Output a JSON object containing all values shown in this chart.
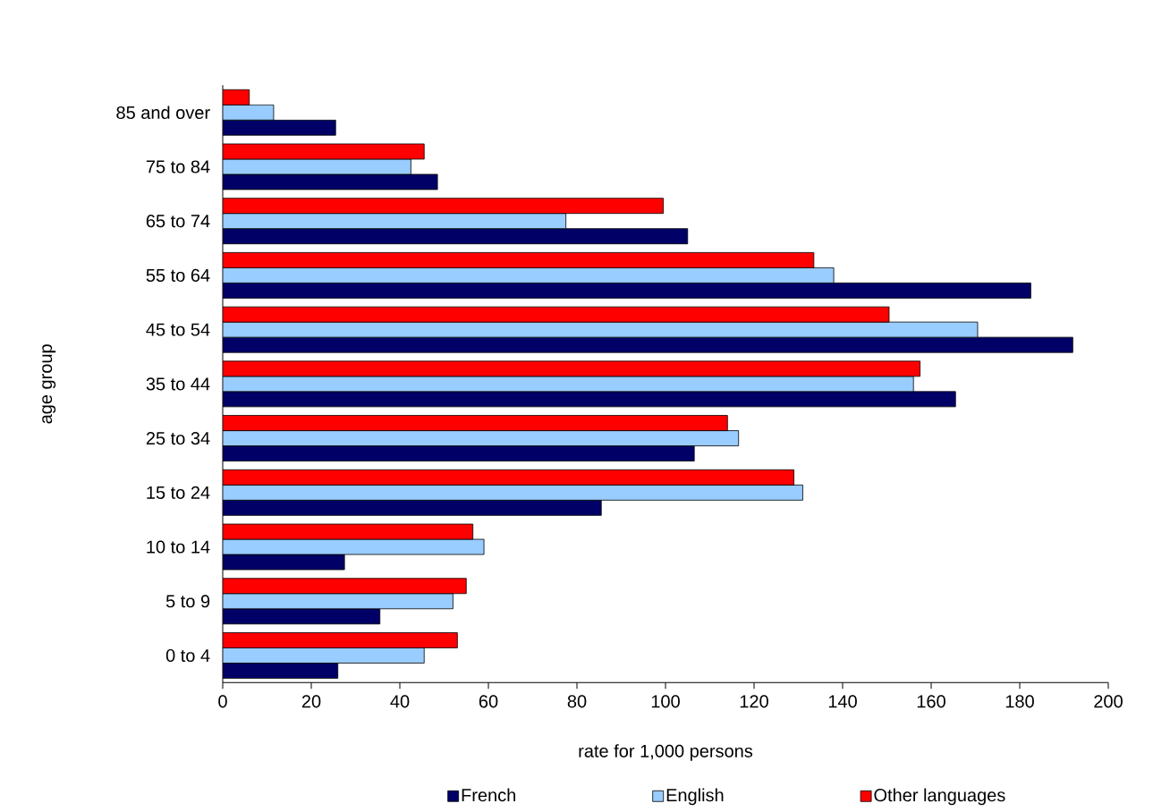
{
  "chart_data": {
    "type": "bar",
    "orientation": "horizontal",
    "xlabel": "rate for 1,000 persons",
    "ylabel": "age group",
    "categories": [
      "85 and over",
      "75 to 84",
      "65 to 74",
      "55 to 64",
      "45 to 54",
      "35 to 44",
      "25 to 34",
      "15 to 24",
      "10 to 14",
      "5 to 9",
      "0 to 4"
    ],
    "series": [
      {
        "name": "French",
        "color": "#000066",
        "values": [
          25.5,
          48.5,
          105,
          182.5,
          192,
          165.5,
          106.5,
          85.5,
          27.5,
          35.5,
          26
        ]
      },
      {
        "name": "English",
        "color": "#99ccff",
        "values": [
          11.5,
          42.5,
          77.5,
          138,
          170.5,
          156,
          116.5,
          131,
          59,
          52,
          45.5
        ]
      },
      {
        "name": "Other languages",
        "color": "#ff0000",
        "values": [
          6,
          45.5,
          99.5,
          133.5,
          150.5,
          157.5,
          114,
          129,
          56.5,
          55,
          53
        ]
      }
    ],
    "xlim": [
      0,
      200
    ],
    "xticks": [
      0,
      20,
      40,
      60,
      80,
      100,
      120,
      140,
      160,
      180,
      200
    ],
    "legend": "bottom"
  }
}
